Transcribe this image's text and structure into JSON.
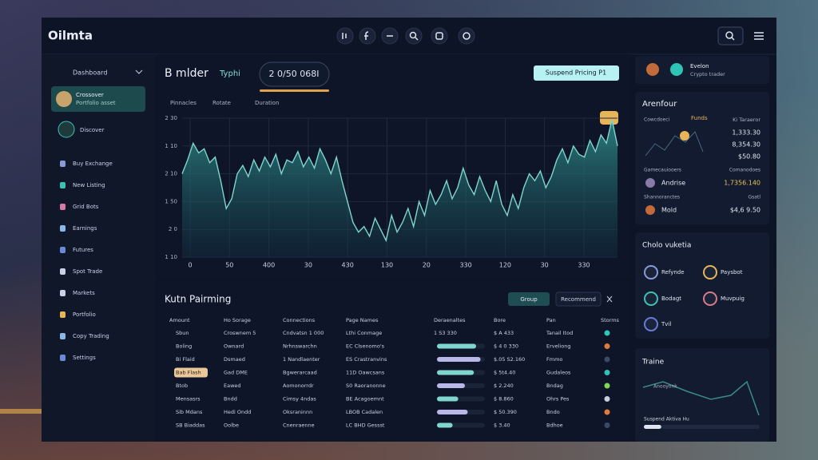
{
  "header": {
    "logo": "Oilmta"
  },
  "sidebar": {
    "title": "Dashboard",
    "selected": {
      "title": "Crossover",
      "subtitle": "Portfolio asset"
    },
    "discover": "Discover",
    "items": [
      "Buy Exchange",
      "New Listing",
      "Grid Bots",
      "Earnings",
      "Futures",
      "Spot Trade",
      "Markets",
      "Portfolio",
      "Copy Trading",
      "Settings"
    ]
  },
  "main": {
    "title": "B mlder",
    "subtitle": "Typhi",
    "pill": "2 0/50 068I",
    "action": "Suspend Pricing P1",
    "tabs": [
      "Pinnacles",
      "Rotate",
      "Duration"
    ],
    "chart": {
      "type": "area",
      "values": [
        60,
        70,
        82,
        75,
        78,
        68,
        72,
        55,
        35,
        42,
        60,
        66,
        58,
        70,
        62,
        72,
        65,
        74,
        60,
        70,
        68,
        76,
        65,
        72,
        64,
        78,
        70,
        60,
        72,
        55,
        40,
        25,
        18,
        22,
        15,
        28,
        20,
        12,
        30,
        18,
        25,
        35,
        22,
        40,
        30,
        48,
        38,
        45,
        55,
        42,
        50,
        64,
        52,
        45,
        58,
        48,
        40,
        55,
        38,
        30,
        45,
        35,
        50,
        60,
        55,
        62,
        50,
        58,
        70,
        78,
        68,
        80,
        74,
        72,
        84,
        76,
        88,
        82,
        99,
        80
      ],
      "ylim": [
        0,
        100
      ],
      "yticks": [
        {
          "value": 100,
          "label": "2 30"
        },
        {
          "value": 80,
          "label": "1 10"
        },
        {
          "value": 60,
          "label": "2 10"
        },
        {
          "value": 40,
          "label": "1 50"
        },
        {
          "value": 20,
          "label": "2 0"
        },
        {
          "value": 0,
          "label": "1 10"
        }
      ],
      "x_labels": [
        "0",
        "50",
        "400",
        "30",
        "430",
        "130",
        "20",
        "330",
        "120",
        "30",
        "330"
      ],
      "color": "#7fd6cf",
      "grid": true
    }
  },
  "table": {
    "title": "Kutn Pairming",
    "buttons": [
      "Group",
      "Recommend"
    ],
    "columns": [
      "Amount",
      "Ho Sorage",
      "Connections",
      "Page Names",
      "Deraenaltes",
      "Bore",
      "Pan",
      "Storms"
    ],
    "highlight_row": 3,
    "bar_colors": [
      "#b9b6e8",
      "#7fd6cf"
    ],
    "rows": [
      [
        "Sbun",
        "Croswnem 5",
        "Cndvatsn 1 000",
        "Lthi Conmage",
        "1 S3 330",
        "$ A 433",
        "Tanail Itod",
        "#2ec4b6"
      ],
      [
        "Boling",
        "Ownard",
        "Nrhnswarchn",
        "EC Clsenomo's",
        70,
        "$ 4 0 330",
        "Erveliong",
        "#e07b39"
      ],
      [
        "Bi Flaid",
        "Dsmaed",
        "1 Nandlaenter",
        "ES Crastranvins",
        78,
        "$.05 S2.160",
        "Fmmo",
        "#3a4a66"
      ],
      [
        "Bab Flash",
        "Gad DME",
        "Bgwerarcaad",
        "11D Oawcsans",
        66,
        "$ 5t4.40",
        "Gudaleos",
        "#2ec4b6"
      ],
      [
        "Btob",
        "Eawed",
        "Aomonorrdr",
        "S0 Raoranonne",
        50,
        "$ 2.240",
        "Bndag",
        "#7ed957"
      ],
      [
        "Mensasrs",
        "Bndd",
        "Cimsy 4ndas",
        "BE Acagoemnt",
        38,
        "$ 8.860",
        "Ohrs Pes",
        "#c8d0e0"
      ],
      [
        "Sib Mdans",
        "Hedi Ondd",
        "Oksraninnn",
        "LBOB Cadalen",
        55,
        "$ 50.390",
        "Bndo",
        "#e07b39"
      ],
      [
        "SB Biaddas",
        "Oolbe",
        "Cnenraenne",
        "LC BHD Gessst",
        28,
        "$ 3.40",
        "Bdhoe",
        "#3a4a66"
      ]
    ]
  },
  "right": {
    "profile": {
      "name": "Evelon",
      "role": "Crypto trader"
    },
    "arena": {
      "title": "Arenfour",
      "label_a": "Cowcdoeci",
      "funds": "Funds",
      "label_b": "Ki Taraeror",
      "values": [
        "1,333.30",
        "8,354.30",
        "$50.80"
      ],
      "label_c": "Gamecauiooers",
      "label_d": "Comanodoes",
      "rows": [
        {
          "name": "Andrise",
          "value": "1,7356.140"
        },
        {
          "name": "Mold",
          "value": "$4,6 9.50"
        }
      ],
      "label_e": "Shannoranctes",
      "label_f": "Gsatl"
    },
    "votes": {
      "title": "Cholo vuketia",
      "items": [
        "Refynde",
        "Paysbot",
        "Bodagt",
        "Muvpuig",
        "Tvil"
      ]
    },
    "trainer": {
      "title": "Traine",
      "small": "Anooyonk",
      "label": "Suspend Aktiva Hu",
      "progress": 15
    }
  }
}
